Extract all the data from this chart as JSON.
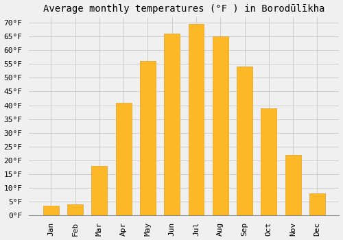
{
  "title": "Average monthly temperatures (°F ) in Borodūlīkha",
  "months": [
    "Jan",
    "Feb",
    "Mar",
    "Apr",
    "May",
    "Jun",
    "Jul",
    "Aug",
    "Sep",
    "Oct",
    "Nov",
    "Dec"
  ],
  "values": [
    3.5,
    4.0,
    18.0,
    41.0,
    56.0,
    66.0,
    69.5,
    65.0,
    54.0,
    39.0,
    22.0,
    8.0
  ],
  "bar_color": "#FDB827",
  "bar_edge_color": "#E0A020",
  "ylim": [
    0,
    72
  ],
  "yticks": [
    0,
    5,
    10,
    15,
    20,
    25,
    30,
    35,
    40,
    45,
    50,
    55,
    60,
    65,
    70
  ],
  "ytick_labels": [
    "0°F",
    "5°F",
    "10°F",
    "15°F",
    "20°F",
    "25°F",
    "30°F",
    "35°F",
    "40°F",
    "45°F",
    "50°F",
    "55°F",
    "60°F",
    "65°F",
    "70°F"
  ],
  "background_color": "#f0f0f0",
  "grid_color": "#cccccc",
  "title_fontsize": 10,
  "tick_fontsize": 8
}
